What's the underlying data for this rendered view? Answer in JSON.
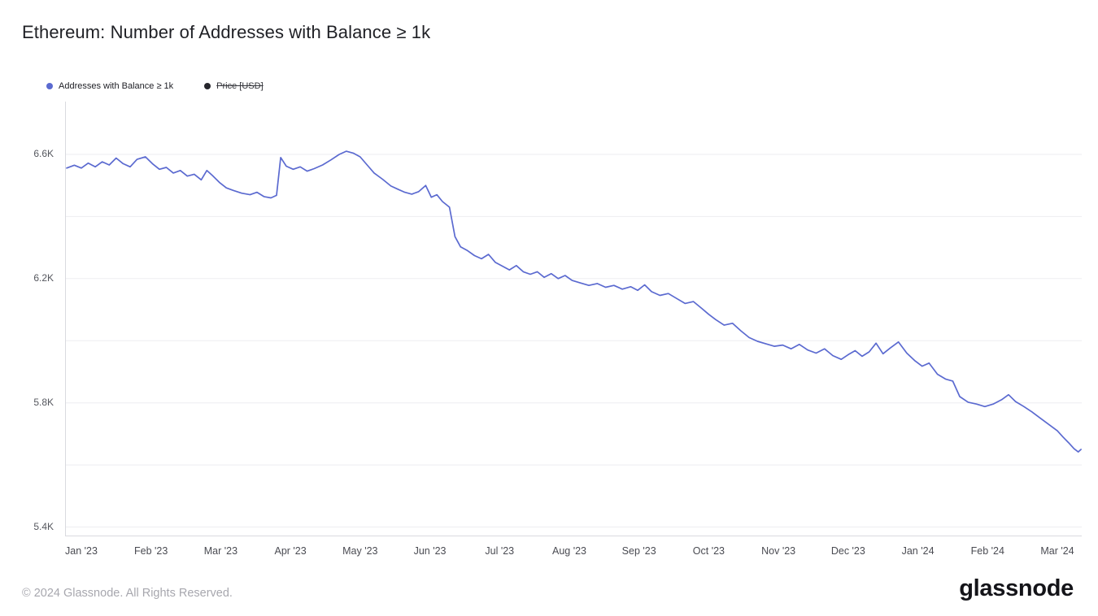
{
  "page": {
    "title": "Ethereum: Number of Addresses with Balance ≥ 1k",
    "footer_copyright": "© 2024 Glassnode. All Rights Reserved.",
    "brand_logo": "glassnode"
  },
  "legend": {
    "items": [
      {
        "label": "Addresses with Balance ≥ 1k",
        "color": "#5b6ad0",
        "active": true
      },
      {
        "label": "Price [USD]",
        "color": "#26262c",
        "active": false
      }
    ]
  },
  "chart_data": {
    "type": "line",
    "title": "Ethereum: Number of Addresses with Balance ≥ 1k",
    "xlabel": "",
    "ylabel": "Number of Addresses with Balance ≥ 1k",
    "x_unit": "months since Jan 1 2023",
    "xlim": [
      -0.233,
      14.35
    ],
    "ylim": [
      5.37,
      6.77
    ],
    "grid": true,
    "legend_position": "top-left",
    "colors": {
      "line": "#5b6ad0",
      "gridline": "#ededf1",
      "axis": "#d9dadf"
    },
    "yticks": [
      {
        "v": 5.4,
        "label": "5.4K"
      },
      {
        "v": 5.6,
        "label": ""
      },
      {
        "v": 5.8,
        "label": "5.8K"
      },
      {
        "v": 6.0,
        "label": ""
      },
      {
        "v": 6.2,
        "label": "6.2K"
      },
      {
        "v": 6.4,
        "label": ""
      },
      {
        "v": 6.6,
        "label": "6.6K"
      }
    ],
    "xticks": [
      {
        "v": 0,
        "label": "Jan '23"
      },
      {
        "v": 1,
        "label": "Feb '23"
      },
      {
        "v": 2,
        "label": "Mar '23"
      },
      {
        "v": 3,
        "label": "Apr '23"
      },
      {
        "v": 4,
        "label": "May '23"
      },
      {
        "v": 5,
        "label": "Jun '23"
      },
      {
        "v": 6,
        "label": "Jul '23"
      },
      {
        "v": 7,
        "label": "Aug '23"
      },
      {
        "v": 8,
        "label": "Sep '23"
      },
      {
        "v": 9,
        "label": "Oct '23"
      },
      {
        "v": 10,
        "label": "Nov '23"
      },
      {
        "v": 11,
        "label": "Dec '23"
      },
      {
        "v": 12,
        "label": "Jan '24"
      },
      {
        "v": 13,
        "label": "Feb '24"
      },
      {
        "v": 14,
        "label": "Mar '24"
      }
    ],
    "series": [
      {
        "name": "Addresses with Balance ≥ 1k",
        "color": "#5b6ad0",
        "unit": "K addresses",
        "points": [
          [
            -0.21,
            6.556
          ],
          [
            -0.1,
            6.565
          ],
          [
            0.0,
            6.556
          ],
          [
            0.1,
            6.572
          ],
          [
            0.2,
            6.56
          ],
          [
            0.3,
            6.576
          ],
          [
            0.4,
            6.566
          ],
          [
            0.5,
            6.588
          ],
          [
            0.6,
            6.57
          ],
          [
            0.7,
            6.56
          ],
          [
            0.8,
            6.584
          ],
          [
            0.92,
            6.592
          ],
          [
            1.02,
            6.57
          ],
          [
            1.12,
            6.552
          ],
          [
            1.22,
            6.558
          ],
          [
            1.32,
            6.54
          ],
          [
            1.42,
            6.548
          ],
          [
            1.52,
            6.53
          ],
          [
            1.62,
            6.536
          ],
          [
            1.72,
            6.518
          ],
          [
            1.8,
            6.548
          ],
          [
            1.88,
            6.532
          ],
          [
            1.98,
            6.51
          ],
          [
            2.08,
            6.492
          ],
          [
            2.18,
            6.484
          ],
          [
            2.3,
            6.475
          ],
          [
            2.42,
            6.47
          ],
          [
            2.52,
            6.478
          ],
          [
            2.62,
            6.464
          ],
          [
            2.72,
            6.46
          ],
          [
            2.8,
            6.468
          ],
          [
            2.86,
            6.59
          ],
          [
            2.94,
            6.562
          ],
          [
            3.04,
            6.552
          ],
          [
            3.14,
            6.56
          ],
          [
            3.24,
            6.546
          ],
          [
            3.34,
            6.554
          ],
          [
            3.46,
            6.566
          ],
          [
            3.58,
            6.582
          ],
          [
            3.7,
            6.6
          ],
          [
            3.8,
            6.61
          ],
          [
            3.9,
            6.604
          ],
          [
            4.0,
            6.592
          ],
          [
            4.1,
            6.566
          ],
          [
            4.2,
            6.54
          ],
          [
            4.32,
            6.52
          ],
          [
            4.44,
            6.498
          ],
          [
            4.54,
            6.488
          ],
          [
            4.64,
            6.478
          ],
          [
            4.74,
            6.472
          ],
          [
            4.84,
            6.48
          ],
          [
            4.94,
            6.5
          ],
          [
            5.02,
            6.462
          ],
          [
            5.1,
            6.47
          ],
          [
            5.18,
            6.448
          ],
          [
            5.28,
            6.43
          ],
          [
            5.36,
            6.335
          ],
          [
            5.44,
            6.302
          ],
          [
            5.54,
            6.29
          ],
          [
            5.64,
            6.274
          ],
          [
            5.74,
            6.264
          ],
          [
            5.84,
            6.278
          ],
          [
            5.94,
            6.252
          ],
          [
            6.04,
            6.24
          ],
          [
            6.14,
            6.228
          ],
          [
            6.24,
            6.242
          ],
          [
            6.34,
            6.222
          ],
          [
            6.44,
            6.214
          ],
          [
            6.54,
            6.222
          ],
          [
            6.64,
            6.204
          ],
          [
            6.74,
            6.216
          ],
          [
            6.84,
            6.2
          ],
          [
            6.94,
            6.21
          ],
          [
            7.04,
            6.194
          ],
          [
            7.16,
            6.186
          ],
          [
            7.28,
            6.178
          ],
          [
            7.4,
            6.184
          ],
          [
            7.52,
            6.172
          ],
          [
            7.64,
            6.178
          ],
          [
            7.76,
            6.166
          ],
          [
            7.88,
            6.174
          ],
          [
            7.98,
            6.162
          ],
          [
            8.08,
            6.18
          ],
          [
            8.18,
            6.158
          ],
          [
            8.3,
            6.146
          ],
          [
            8.42,
            6.152
          ],
          [
            8.54,
            6.136
          ],
          [
            8.66,
            6.12
          ],
          [
            8.78,
            6.126
          ],
          [
            8.9,
            6.104
          ],
          [
            9.0,
            6.085
          ],
          [
            9.1,
            6.068
          ],
          [
            9.22,
            6.05
          ],
          [
            9.34,
            6.056
          ],
          [
            9.46,
            6.032
          ],
          [
            9.58,
            6.01
          ],
          [
            9.7,
            5.998
          ],
          [
            9.82,
            5.99
          ],
          [
            9.94,
            5.982
          ],
          [
            10.06,
            5.986
          ],
          [
            10.18,
            5.974
          ],
          [
            10.3,
            5.988
          ],
          [
            10.42,
            5.97
          ],
          [
            10.54,
            5.96
          ],
          [
            10.66,
            5.974
          ],
          [
            10.78,
            5.952
          ],
          [
            10.9,
            5.94
          ],
          [
            11.0,
            5.955
          ],
          [
            11.1,
            5.968
          ],
          [
            11.2,
            5.95
          ],
          [
            11.3,
            5.964
          ],
          [
            11.4,
            5.992
          ],
          [
            11.5,
            5.958
          ],
          [
            11.6,
            5.976
          ],
          [
            11.72,
            5.996
          ],
          [
            11.84,
            5.96
          ],
          [
            11.96,
            5.935
          ],
          [
            12.06,
            5.918
          ],
          [
            12.16,
            5.928
          ],
          [
            12.28,
            5.892
          ],
          [
            12.4,
            5.876
          ],
          [
            12.5,
            5.87
          ],
          [
            12.6,
            5.82
          ],
          [
            12.72,
            5.802
          ],
          [
            12.84,
            5.796
          ],
          [
            12.96,
            5.788
          ],
          [
            13.08,
            5.796
          ],
          [
            13.2,
            5.81
          ],
          [
            13.3,
            5.826
          ],
          [
            13.4,
            5.804
          ],
          [
            13.52,
            5.788
          ],
          [
            13.64,
            5.77
          ],
          [
            13.76,
            5.75
          ],
          [
            13.88,
            5.73
          ],
          [
            14.0,
            5.71
          ],
          [
            14.08,
            5.69
          ],
          [
            14.16,
            5.672
          ],
          [
            14.24,
            5.652
          ],
          [
            14.3,
            5.642
          ],
          [
            14.34,
            5.65
          ]
        ]
      }
    ]
  }
}
